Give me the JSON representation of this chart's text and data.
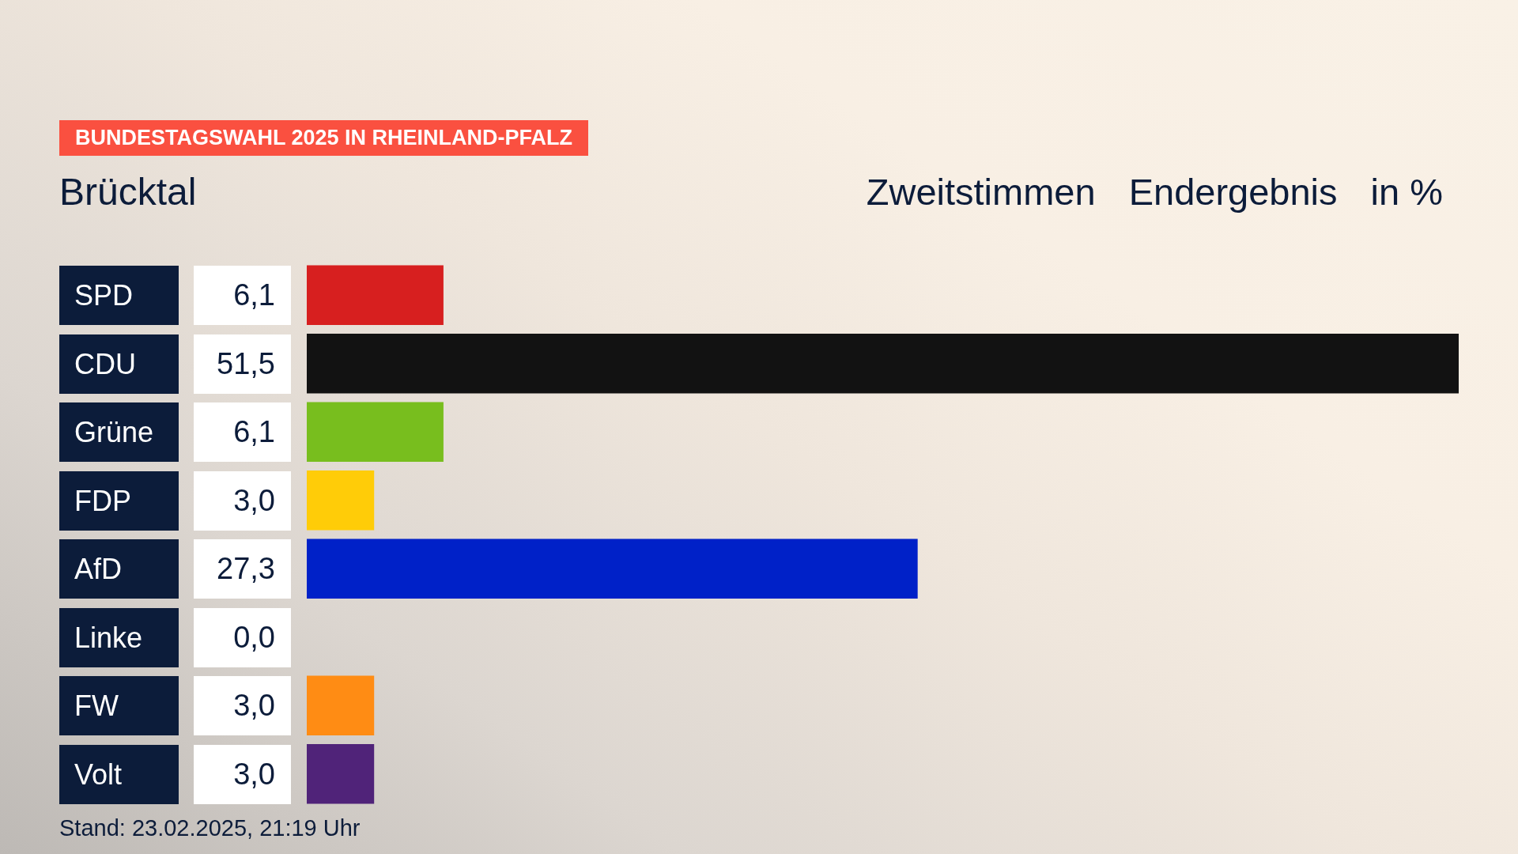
{
  "chart_data": {
    "type": "bar",
    "orientation": "horizontal",
    "title": "BUNDESTAGSWAHL 2025 IN RHEINLAND-PFALZ",
    "subtitle": "Brücktal",
    "categories": [
      "SPD",
      "CDU",
      "Grüne",
      "FDP",
      "AfD",
      "Linke",
      "FW",
      "Volt"
    ],
    "values": [
      6.1,
      51.5,
      6.1,
      3.0,
      27.3,
      0.0,
      3.0,
      3.0
    ],
    "colors": [
      "#d71f1f",
      "#121212",
      "#78be1e",
      "#ffcc08",
      "#0021c8",
      null,
      "#ff8c14",
      "#502379"
    ],
    "value_labels": [
      "6,1",
      "51,5",
      "6,1",
      "3,0",
      "27,3",
      "0,0",
      "3,0",
      "3,0"
    ],
    "annotations": [
      "Zweitstimmen",
      "Endergebnis",
      "in %",
      "Stand: 23.02.2025, 21:19 Uhr"
    ],
    "tick_labels": "y",
    "legend": false
  }
}
